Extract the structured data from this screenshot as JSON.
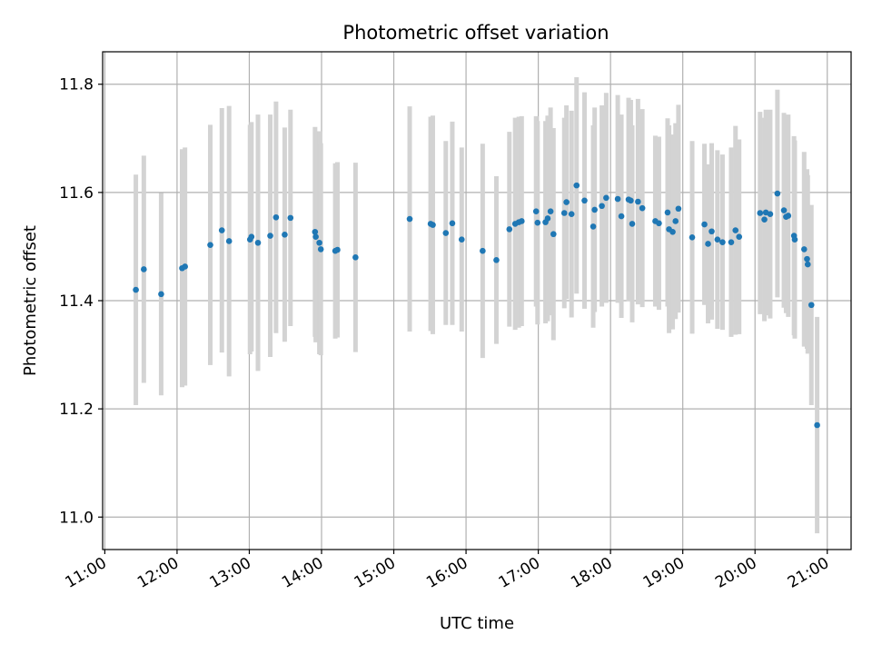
{
  "chart_data": {
    "type": "scatter",
    "title": "Photometric offset variation",
    "xlabel": "UTC time",
    "ylabel": "Photometric offset",
    "x_unit": "UTC hour of day",
    "xlim": [
      10.97,
      21.33
    ],
    "ylim": [
      10.94,
      11.86
    ],
    "grid": true,
    "colors": {
      "point": "#1f77b4",
      "errorbar": "#d3d3d3",
      "grid": "#b0b0b0",
      "axis": "#000000"
    },
    "x_ticks": [
      {
        "value": 11,
        "label": "11:00"
      },
      {
        "value": 12,
        "label": "12:00"
      },
      {
        "value": 13,
        "label": "13:00"
      },
      {
        "value": 14,
        "label": "14:00"
      },
      {
        "value": 15,
        "label": "15:00"
      },
      {
        "value": 16,
        "label": "16:00"
      },
      {
        "value": 17,
        "label": "17:00"
      },
      {
        "value": 18,
        "label": "18:00"
      },
      {
        "value": 19,
        "label": "19:00"
      },
      {
        "value": 20,
        "label": "20:00"
      },
      {
        "value": 21,
        "label": "21:00"
      }
    ],
    "y_ticks": [
      {
        "value": 11.0,
        "label": "11.0"
      },
      {
        "value": 11.2,
        "label": "11.2"
      },
      {
        "value": 11.4,
        "label": "11.4"
      },
      {
        "value": 11.6,
        "label": "11.6"
      },
      {
        "value": 11.8,
        "label": "11.8"
      }
    ],
    "series": [
      {
        "x": [
          11.43,
          11.54,
          11.78,
          12.07,
          12.11,
          12.46,
          12.62,
          12.72,
          13.01,
          13.03,
          13.12,
          13.29,
          13.37,
          13.49,
          13.57,
          13.91,
          13.92,
          13.97,
          13.99,
          14.19,
          14.22,
          14.47,
          15.22,
          15.51,
          15.54,
          15.72,
          15.81,
          15.94,
          16.23,
          16.42,
          16.6,
          16.68,
          16.73,
          16.77,
          16.97,
          16.99,
          17.1,
          17.13,
          17.17,
          17.21,
          17.36,
          17.39,
          17.46,
          17.53,
          17.64,
          17.76,
          17.78,
          17.88,
          17.94,
          18.1,
          18.15,
          18.25,
          18.28,
          18.3,
          18.38,
          18.44,
          18.62,
          18.67,
          18.79,
          18.81,
          18.86,
          18.9,
          18.94,
          19.13,
          19.3,
          19.35,
          19.4,
          19.48,
          19.55,
          19.67,
          19.73,
          19.78,
          20.07,
          20.13,
          20.15,
          20.21,
          20.31,
          20.4,
          20.43,
          20.46,
          20.54,
          20.55,
          20.68,
          20.72,
          20.73,
          20.78,
          20.86
        ],
        "y": [
          11.42,
          11.458,
          11.412,
          11.46,
          11.463,
          11.503,
          11.53,
          11.51,
          11.513,
          11.518,
          11.507,
          11.52,
          11.554,
          11.522,
          11.553,
          11.527,
          11.518,
          11.507,
          11.495,
          11.492,
          11.494,
          11.48,
          11.551,
          11.542,
          11.54,
          11.525,
          11.543,
          11.513,
          11.492,
          11.475,
          11.532,
          11.542,
          11.545,
          11.547,
          11.565,
          11.544,
          11.545,
          11.552,
          11.565,
          11.523,
          11.562,
          11.582,
          11.56,
          11.613,
          11.585,
          11.537,
          11.568,
          11.575,
          11.59,
          11.588,
          11.556,
          11.587,
          11.585,
          11.542,
          11.583,
          11.571,
          11.547,
          11.543,
          11.563,
          11.532,
          11.527,
          11.547,
          11.57,
          11.517,
          11.541,
          11.505,
          11.528,
          11.513,
          11.508,
          11.508,
          11.53,
          11.518,
          11.562,
          11.55,
          11.563,
          11.56,
          11.598,
          11.567,
          11.555,
          11.557,
          11.52,
          11.513,
          11.495,
          11.477,
          11.467,
          11.392,
          11.17
        ],
        "err": [
          0.213,
          0.21,
          0.187,
          0.22,
          0.22,
          0.222,
          0.226,
          0.25,
          0.212,
          0.212,
          0.237,
          0.224,
          0.214,
          0.198,
          0.2,
          0.194,
          0.195,
          0.206,
          0.196,
          0.162,
          0.162,
          0.175,
          0.208,
          0.198,
          0.202,
          0.17,
          0.188,
          0.17,
          0.198,
          0.155,
          0.18,
          0.196,
          0.195,
          0.194,
          0.176,
          0.188,
          0.187,
          0.19,
          0.192,
          0.196,
          0.176,
          0.179,
          0.191,
          0.2,
          0.2,
          0.187,
          0.189,
          0.186,
          0.194,
          0.192,
          0.188,
          0.188,
          0.186,
          0.182,
          0.19,
          0.183,
          0.158,
          0.16,
          0.174,
          0.192,
          0.18,
          0.181,
          0.192,
          0.178,
          0.149,
          0.147,
          0.163,
          0.165,
          0.162,
          0.175,
          0.193,
          0.18,
          0.187,
          0.188,
          0.19,
          0.193,
          0.192,
          0.18,
          0.178,
          0.187,
          0.184,
          0.183,
          0.18,
          0.166,
          0.165,
          0.185,
          0.2
        ]
      }
    ]
  }
}
